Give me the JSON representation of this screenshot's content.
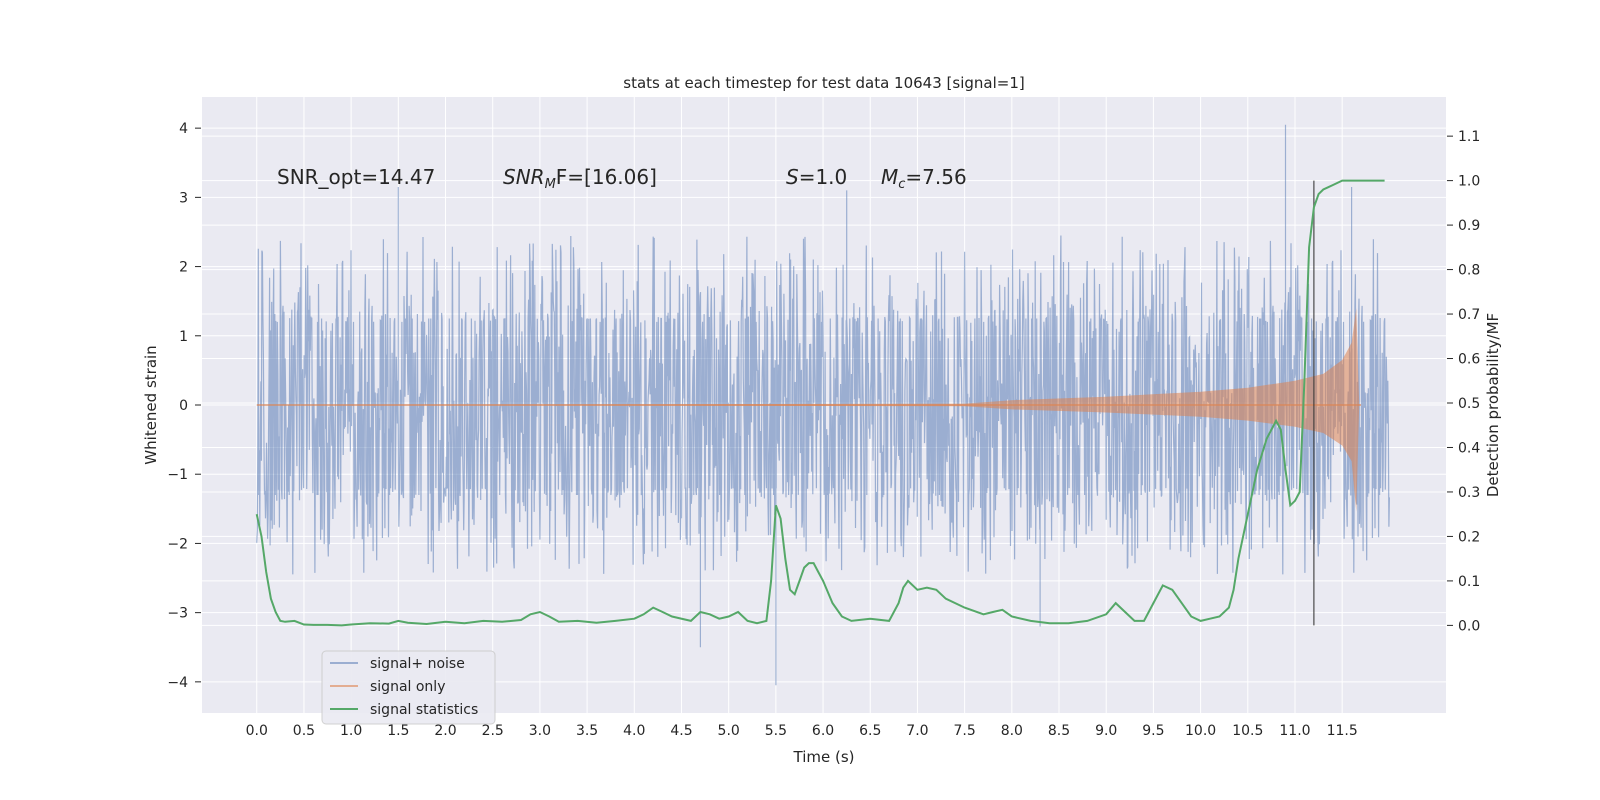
{
  "chart_data": {
    "type": "line",
    "title": "stats at each timestep for test data 10643 [signal=1]",
    "xlabel": "Time (s)",
    "ylabel_left": "Whitened strain",
    "ylabel_right": "Detection probability/MF",
    "xlim": [
      -0.58,
      12.6
    ],
    "ylim_left": [
      -4.45,
      4.45
    ],
    "ylim_right": [
      -0.197,
      1.188
    ],
    "x_ticks": [
      "0.0",
      "0.5",
      "1.0",
      "1.5",
      "2.0",
      "2.5",
      "3.0",
      "3.5",
      "4.0",
      "4.5",
      "5.0",
      "5.5",
      "6.0",
      "6.5",
      "7.0",
      "7.5",
      "8.0",
      "8.5",
      "9.0",
      "9.5",
      "10.0",
      "10.5",
      "11.0",
      "11.5"
    ],
    "y_ticks_left": [
      "4",
      "3",
      "2",
      "1",
      "0",
      "−1",
      "−2",
      "−3",
      "−4"
    ],
    "y_ticks_right": [
      "1.1",
      "1.0",
      "0.9",
      "0.8",
      "0.7",
      "0.6",
      "0.5",
      "0.4",
      "0.3",
      "0.2",
      "0.1",
      "0.0"
    ],
    "grid": true,
    "legend_placement": "lower-left",
    "annotations": {
      "snr_opt": "SNR_opt=14.47",
      "snr_mf_name": "SNR",
      "snr_mf_sub": "M",
      "snr_mf_rest": "F=[16.06]",
      "s_name": "S",
      "s_rest": "=1.0",
      "mc_name": "M",
      "mc_sub": "c",
      "mc_rest": "=7.56"
    },
    "vertical_marker_x": 11.2,
    "colors": {
      "signal_noise": "#4c72b0",
      "signal_only": "#dd8452",
      "signal_statistics": "#55a868",
      "marker": "#333333",
      "axes_bg": "#eaeaf2",
      "grid": "#ffffff"
    },
    "series": [
      {
        "name": "signal+ noise",
        "axis": "left",
        "description_values": {
          "t_start": 0.0,
          "t_end": 12.0,
          "typical_band": [
            -1.3,
            1.25
          ],
          "max": 4.05,
          "min": -4.05
        },
        "peaks": [
          {
            "x": 1.5,
            "y": 3.15
          },
          {
            "x": 5.5,
            "y": -4.05
          },
          {
            "x": 4.7,
            "y": -3.5
          },
          {
            "x": 6.25,
            "y": 3.1
          },
          {
            "x": 10.9,
            "y": 4.05
          },
          {
            "x": 8.3,
            "y": -3.2
          },
          {
            "x": 11.6,
            "y": 3.15
          }
        ]
      },
      {
        "name": "signal only",
        "axis": "left",
        "envelope": {
          "x": [
            0,
            7.5,
            8.0,
            9.0,
            10.0,
            10.5,
            11.0,
            11.3,
            11.5,
            11.6,
            11.65,
            11.68
          ],
          "y": [
            0.0,
            0.02,
            0.07,
            0.12,
            0.19,
            0.25,
            0.35,
            0.45,
            0.65,
            0.9,
            1.4,
            0.0
          ]
        }
      },
      {
        "name": "signal statistics",
        "axis": "right",
        "x": [
          0.0,
          0.05,
          0.1,
          0.15,
          0.2,
          0.25,
          0.3,
          0.4,
          0.5,
          0.6,
          0.75,
          0.9,
          1.0,
          1.2,
          1.4,
          1.5,
          1.6,
          1.8,
          2.0,
          2.2,
          2.4,
          2.6,
          2.8,
          2.9,
          3.0,
          3.1,
          3.2,
          3.4,
          3.6,
          3.8,
          4.0,
          4.1,
          4.2,
          4.3,
          4.4,
          4.6,
          4.7,
          4.8,
          4.9,
          5.0,
          5.1,
          5.2,
          5.3,
          5.4,
          5.45,
          5.5,
          5.55,
          5.6,
          5.65,
          5.7,
          5.75,
          5.8,
          5.85,
          5.9,
          5.95,
          6.0,
          6.1,
          6.2,
          6.3,
          6.5,
          6.7,
          6.8,
          6.85,
          6.9,
          7.0,
          7.1,
          7.2,
          7.3,
          7.5,
          7.7,
          7.8,
          7.9,
          8.0,
          8.2,
          8.4,
          8.6,
          8.8,
          9.0,
          9.1,
          9.2,
          9.3,
          9.4,
          9.5,
          9.6,
          9.7,
          9.8,
          9.9,
          10.0,
          10.1,
          10.2,
          10.3,
          10.35,
          10.4,
          10.5,
          10.6,
          10.7,
          10.8,
          10.85,
          10.9,
          10.95,
          11.0,
          11.05,
          11.1,
          11.15,
          11.2,
          11.25,
          11.3,
          11.35,
          11.4,
          11.5,
          11.6,
          11.7,
          11.8,
          11.9,
          11.95
        ],
        "y": [
          0.25,
          0.2,
          0.12,
          0.06,
          0.03,
          0.01,
          0.008,
          0.01,
          0.002,
          0.001,
          0.001,
          0.0,
          0.002,
          0.005,
          0.004,
          0.01,
          0.006,
          0.003,
          0.008,
          0.005,
          0.01,
          0.008,
          0.012,
          0.025,
          0.03,
          0.02,
          0.008,
          0.01,
          0.006,
          0.01,
          0.015,
          0.025,
          0.04,
          0.03,
          0.02,
          0.01,
          0.03,
          0.025,
          0.015,
          0.02,
          0.03,
          0.01,
          0.005,
          0.01,
          0.1,
          0.27,
          0.24,
          0.15,
          0.08,
          0.07,
          0.1,
          0.13,
          0.14,
          0.14,
          0.12,
          0.1,
          0.05,
          0.02,
          0.01,
          0.015,
          0.01,
          0.05,
          0.085,
          0.1,
          0.08,
          0.085,
          0.08,
          0.06,
          0.04,
          0.025,
          0.03,
          0.035,
          0.02,
          0.01,
          0.005,
          0.005,
          0.01,
          0.025,
          0.05,
          0.03,
          0.01,
          0.01,
          0.05,
          0.09,
          0.08,
          0.05,
          0.02,
          0.01,
          0.015,
          0.02,
          0.04,
          0.08,
          0.15,
          0.25,
          0.35,
          0.42,
          0.46,
          0.44,
          0.35,
          0.27,
          0.28,
          0.3,
          0.55,
          0.85,
          0.94,
          0.97,
          0.98,
          0.985,
          0.99,
          1.0,
          1.0,
          1.0,
          1.0,
          1.0,
          1.0
        ]
      }
    ]
  }
}
